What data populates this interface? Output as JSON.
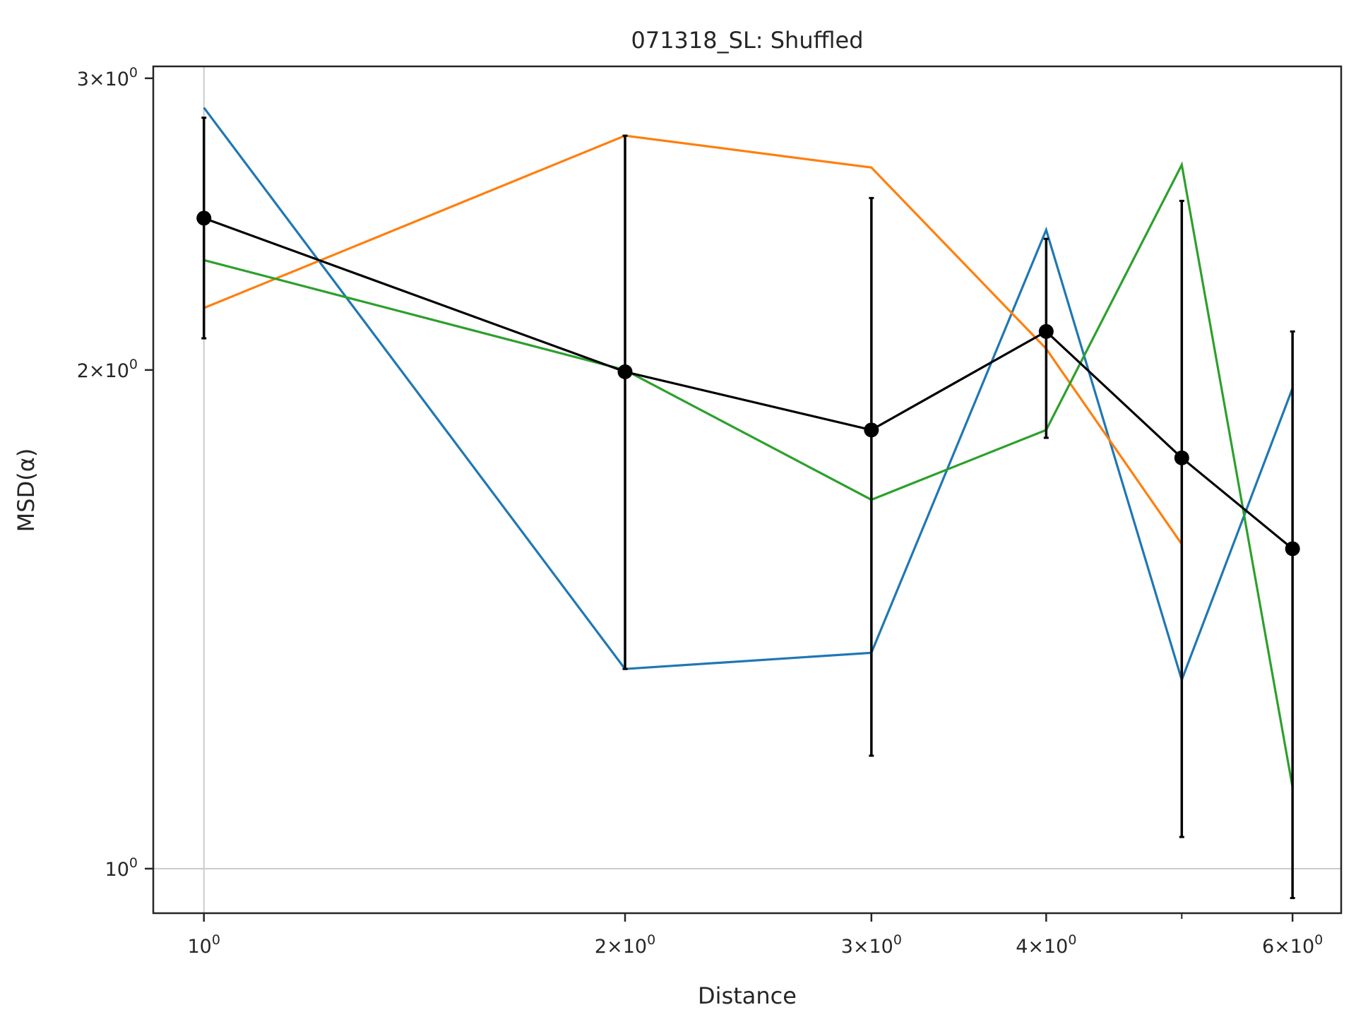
{
  "chart_data": {
    "type": "line",
    "title": "071318_SL: Shuffled",
    "xlabel": "Distance",
    "ylabel": "MSD(α)",
    "xscale": "log",
    "yscale": "log",
    "xlim": [
      0.92,
      6.5
    ],
    "ylim": [
      0.94,
      3.05
    ],
    "x_ticks": [
      {
        "value": 1,
        "mant": "",
        "exp": "0"
      },
      {
        "value": 2,
        "mant": "2",
        "exp": "0"
      },
      {
        "value": 3,
        "mant": "3",
        "exp": "0"
      },
      {
        "value": 4,
        "mant": "4",
        "exp": "0"
      },
      {
        "value": 6,
        "mant": "6",
        "exp": "0"
      }
    ],
    "x_minor_ticks": [
      5
    ],
    "y_ticks": [
      {
        "value": 1,
        "mant": "",
        "exp": "0"
      },
      {
        "value": 2,
        "mant": "2",
        "exp": "0"
      },
      {
        "value": 3,
        "mant": "3",
        "exp": "0"
      }
    ],
    "grid": {
      "x": [
        1
      ],
      "y": [
        1
      ]
    },
    "x": [
      1,
      2,
      3,
      4,
      5,
      6
    ],
    "series": [
      {
        "color": "#1f77b4",
        "values": [
          2.88,
          1.32,
          1.35,
          2.43,
          1.3,
          1.95
        ]
      },
      {
        "color": "#ff7f0e",
        "values": [
          2.18,
          2.77,
          2.65,
          2.06,
          1.57,
          null
        ]
      },
      {
        "color": "#2ca02c",
        "values": [
          2.33,
          2.0,
          1.67,
          1.84,
          2.66,
          1.12
        ]
      }
    ],
    "mean": {
      "color": "#000000",
      "values": [
        2.47,
        1.995,
        1.84,
        2.11,
        1.77,
        1.56
      ],
      "err_low": [
        2.09,
        1.32,
        1.17,
        1.82,
        1.045,
        0.96
      ],
      "err_high": [
        2.84,
        2.77,
        2.54,
        2.4,
        2.53,
        2.11
      ]
    }
  }
}
